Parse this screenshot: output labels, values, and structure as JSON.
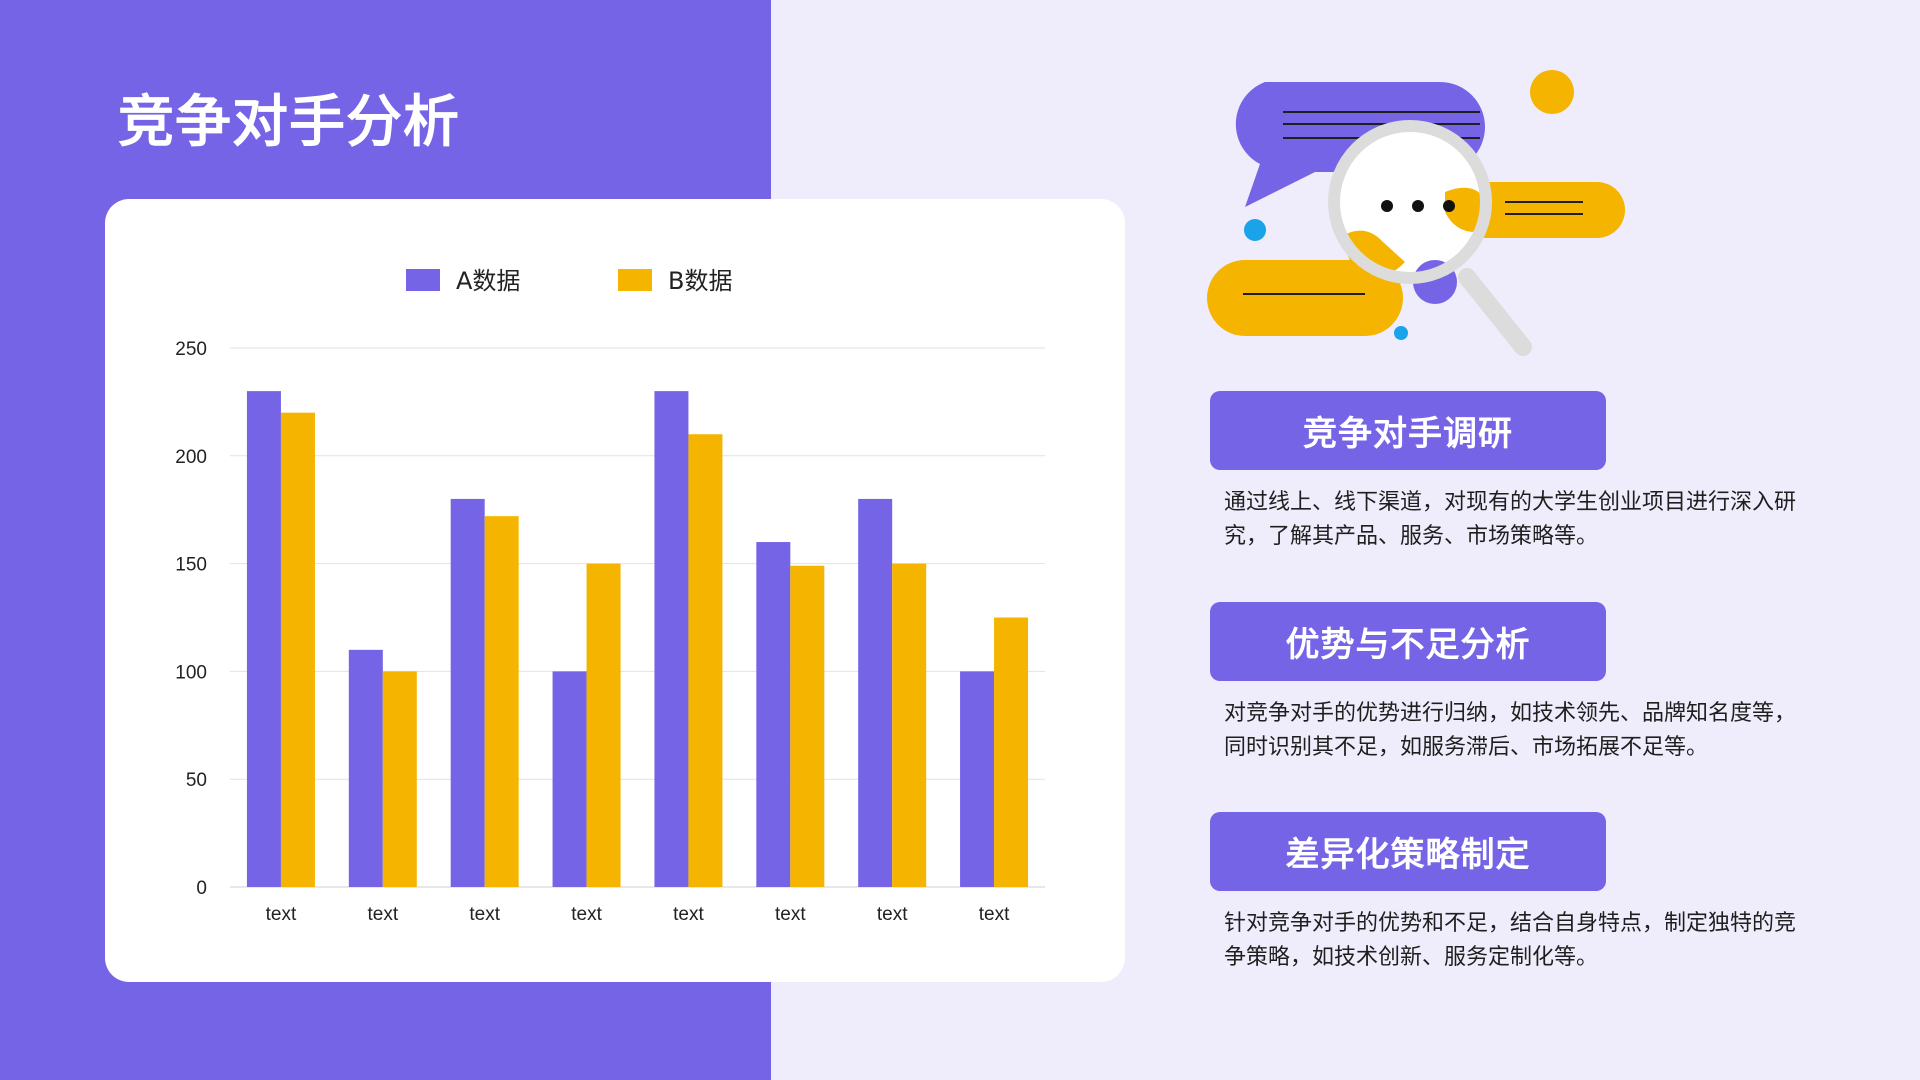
{
  "page": {
    "title": "竞争对手分析",
    "colors": {
      "accent": "#7564e6",
      "series_a": "#7564e6",
      "series_b": "#f5b400",
      "background": "#efedfb",
      "card": "#ffffff",
      "dot_blue": "#1aa3e8"
    }
  },
  "chart_data": {
    "type": "bar",
    "categories": [
      "text",
      "text",
      "text",
      "text",
      "text",
      "text",
      "text",
      "text"
    ],
    "series": [
      {
        "name": "A数据",
        "color": "#7564e6",
        "values": [
          230,
          110,
          180,
          100,
          230,
          160,
          180,
          100
        ]
      },
      {
        "name": "B数据",
        "color": "#f5b400",
        "values": [
          220,
          100,
          172,
          150,
          210,
          149,
          150,
          125
        ]
      }
    ],
    "y_ticks": [
      0,
      50,
      100,
      150,
      200,
      250
    ],
    "ylim": [
      0,
      250
    ],
    "grid": true,
    "legend": "top-center"
  },
  "illustration": {
    "icon": "magnifier-chat-icon"
  },
  "sections": [
    {
      "heading": "竞争对手调研",
      "text": "通过线上、线下渠道，对现有的大学生创业项目进行深入研究，了解其产品、服务、市场策略等。"
    },
    {
      "heading": "优势与不足分析",
      "text": "对竞争对手的优势进行归纳，如技术领先、品牌知名度等，同时识别其不足，如服务滞后、市场拓展不足等。"
    },
    {
      "heading": "差异化策略制定",
      "text": "针对竞争对手的优势和不足，结合自身特点，制定独特的竞争策略，如技术创新、服务定制化等。"
    }
  ]
}
